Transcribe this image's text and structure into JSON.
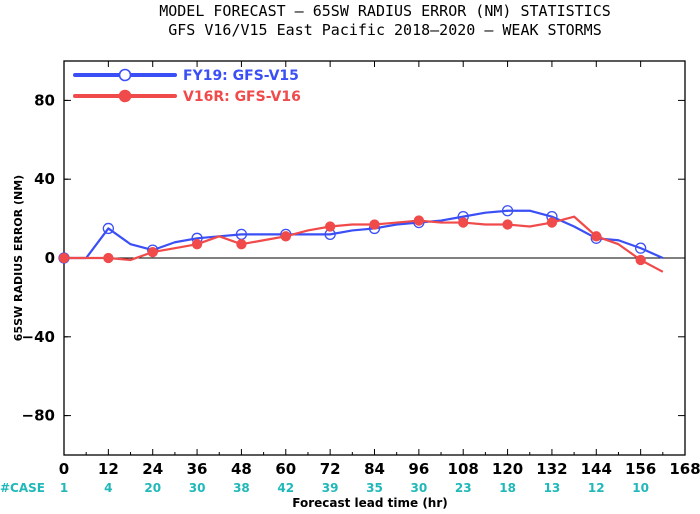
{
  "title_line1": "MODEL FORECAST – 65SW RADIUS ERROR (NM) STATISTICS",
  "title_line2": "GFS V16/V15 East Pacific 2018–2020 – WEAK STORMS",
  "chart_data": {
    "type": "line",
    "title": "MODEL FORECAST – 65SW RADIUS ERROR (NM) STATISTICS",
    "subtitle": "GFS V16/V15 East Pacific 2018–2020 – WEAK STORMS",
    "xlabel": "Forecast lead time (hr)",
    "ylabel": "65SW RADIUS ERROR (NM)",
    "xlim": [
      0,
      168
    ],
    "ylim": [
      -100,
      100
    ],
    "xticks": [
      0,
      12,
      24,
      36,
      48,
      60,
      72,
      84,
      96,
      108,
      120,
      132,
      144,
      156,
      168
    ],
    "yticks": [
      -80,
      -40,
      0,
      40,
      80
    ],
    "zero_line": true,
    "grid": false,
    "legend_position": "top-left",
    "case_label": "#CASE",
    "case_x": [
      0,
      12,
      24,
      36,
      48,
      60,
      72,
      84,
      96,
      108,
      120,
      132,
      144,
      156
    ],
    "case_counts": [
      "1",
      "4",
      "20",
      "30",
      "38",
      "42",
      "39",
      "35",
      "30",
      "23",
      "18",
      "13",
      "12",
      "10"
    ],
    "series": [
      {
        "name": "FY19: GFS-V15",
        "color": "#3a4ff5",
        "marker": "open-circle",
        "x": [
          0,
          6,
          12,
          18,
          24,
          30,
          36,
          42,
          48,
          54,
          60,
          66,
          72,
          78,
          84,
          90,
          96,
          102,
          108,
          114,
          120,
          126,
          132,
          138,
          144,
          150,
          156,
          162
        ],
        "y": [
          0,
          0,
          15,
          7,
          4,
          8,
          10,
          11,
          12,
          12,
          12,
          12,
          12,
          14,
          15,
          17,
          18,
          19,
          21,
          23,
          24,
          24,
          21,
          16,
          10,
          9,
          5,
          0
        ],
        "marker_x": [
          0,
          12,
          24,
          36,
          48,
          60,
          72,
          84,
          96,
          108,
          120,
          132,
          144,
          156
        ],
        "marker_y": [
          0,
          15,
          4,
          10,
          12,
          12,
          12,
          15,
          18,
          21,
          24,
          21,
          10,
          5
        ]
      },
      {
        "name": "V16R: GFS-V16",
        "color": "#f04a4a",
        "marker": "filled-circle",
        "x": [
          0,
          6,
          12,
          18,
          24,
          30,
          36,
          42,
          48,
          54,
          60,
          66,
          72,
          78,
          84,
          90,
          96,
          102,
          108,
          114,
          120,
          126,
          132,
          138,
          144,
          150,
          156,
          162
        ],
        "y": [
          0,
          0,
          0,
          -1,
          3,
          5,
          7,
          11,
          7,
          9,
          11,
          14,
          16,
          17,
          17,
          18,
          19,
          18,
          18,
          17,
          17,
          16,
          18,
          21,
          11,
          7,
          -1,
          -7
        ],
        "marker_x": [
          0,
          12,
          24,
          36,
          48,
          60,
          72,
          84,
          96,
          108,
          120,
          132,
          144,
          156
        ],
        "marker_y": [
          0,
          0,
          3,
          7,
          7,
          11,
          16,
          17,
          19,
          18,
          17,
          18,
          11,
          -1
        ]
      }
    ]
  }
}
